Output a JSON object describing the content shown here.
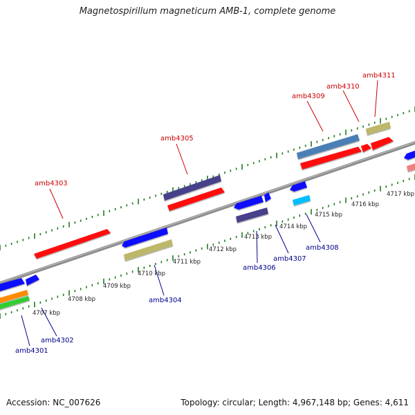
{
  "title": "Magnetospirillum magneticum AMB-1, complete genome",
  "footer": {
    "accession": "Accession: NC_007626",
    "topology": "Topology: circular; Length: 4,967,148 bp; Genes: 4,611"
  },
  "colors": {
    "backbone": "#8c8c8c",
    "tick": "#1f7a1f",
    "label_upper": "#cc0000",
    "label_lower": "#00008b",
    "kbp_label": "#222222"
  },
  "kbp_labels": [
    "4707 kbp",
    "4708 kbp",
    "4709 kbp",
    "4710 kbp",
    "4711 kbp",
    "4712 kbp",
    "4713 kbp",
    "4714 kbp",
    "4715 kbp",
    "4716 kbp",
    "4717 kbp"
  ],
  "upper_genes": [
    {
      "label": "amb4303",
      "color": "#ff1010"
    },
    {
      "label": "amb4305",
      "color": "#ff1010"
    },
    {
      "label": "amb4305",
      "color": "#46408a"
    },
    {
      "label": "amb4309",
      "color": "#ff1010"
    },
    {
      "label": "amb4309",
      "color": "#4a7fb4"
    },
    {
      "label": "amb4310",
      "color": "#ff1010"
    },
    {
      "label": "amb4311",
      "color": "#ff1010"
    },
    {
      "label": "amb4311",
      "color": "#bdb76b"
    }
  ],
  "lower_genes": [
    {
      "label": "amb4301",
      "color": "#1010ff"
    },
    {
      "label": "amb4302",
      "color": "#1010ff"
    },
    {
      "label": "amb4301",
      "color": "#ff8c00"
    },
    {
      "label": "amb4301",
      "color": "#32cd32"
    },
    {
      "label": "amb4304",
      "color": "#1010ff"
    },
    {
      "label": "amb4304",
      "color": "#bdb76b"
    },
    {
      "label": "amb4306",
      "color": "#1010ff"
    },
    {
      "label": "amb4306",
      "color": "#46408a"
    },
    {
      "label": "amb4307",
      "color": "#1010ff"
    },
    {
      "label": "amb4308",
      "color": "#1010ff"
    },
    {
      "label": "amb4308",
      "color": "#00bfff"
    },
    {
      "label": "amb4308",
      "color": "#1010ff"
    },
    {
      "label": "amb4308",
      "color": "#f08080"
    }
  ],
  "upper_labels": [
    "amb4303",
    "amb4305",
    "amb4309",
    "amb4310",
    "amb4311"
  ],
  "lower_labels": [
    "amb4301",
    "amb4302",
    "amb4304",
    "amb4306",
    "amb4307",
    "amb4308"
  ]
}
